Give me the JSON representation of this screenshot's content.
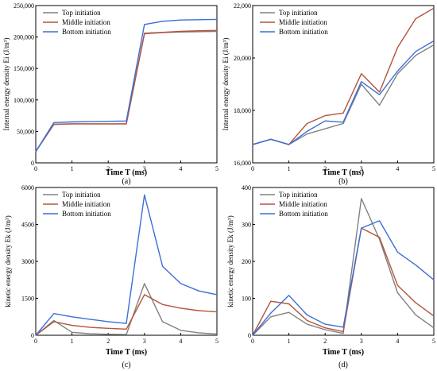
{
  "colors": {
    "top": "#808080",
    "middle": "#b5533c",
    "bottom": "#3a6fd8"
  },
  "chart_data": [
    {
      "type": "line",
      "panel_label": "(a)",
      "xlabel": "Time T (ms)",
      "ylabel": "Internal energy density Ei (J/m³)",
      "xlim": [
        0,
        5
      ],
      "ylim": [
        0,
        250000
      ],
      "xticks": [
        "0",
        "1",
        "2",
        "3",
        "4",
        "5"
      ],
      "yticks": [
        "0",
        "50,000",
        "100,000",
        "150,000",
        "200,000",
        "250,000"
      ],
      "legend_position": "top-left",
      "x": [
        0,
        0.5,
        1,
        1.5,
        2,
        2.5,
        3,
        3.5,
        4,
        4.5,
        5
      ],
      "series": [
        {
          "name": "Top initiation",
          "color_key": "top",
          "values": [
            18000,
            61000,
            62000,
            62000,
            62000,
            62000,
            205000,
            207000,
            208000,
            208500,
            209000
          ]
        },
        {
          "name": "Middle initiation",
          "color_key": "middle",
          "values": [
            18000,
            61500,
            62000,
            62000,
            62000,
            62000,
            206000,
            207500,
            209000,
            210000,
            210500
          ]
        },
        {
          "name": "Bottom initiation",
          "color_key": "bottom",
          "values": [
            18000,
            64000,
            65000,
            65500,
            66000,
            66500,
            220000,
            225000,
            227000,
            227500,
            228000
          ]
        }
      ]
    },
    {
      "type": "line",
      "panel_label": "(b)",
      "xlabel": "Time T (ms)",
      "ylabel": "Internal energy density Ei (J/m³)",
      "xlim": [
        0,
        5
      ],
      "ylim": [
        16000,
        22000
      ],
      "xticks": [
        "0",
        "1",
        "2",
        "3",
        "4",
        "5"
      ],
      "yticks": [
        "16,000",
        "18,000",
        "20,000",
        "22,000"
      ],
      "legend_position": "top-left",
      "x": [
        0,
        0.5,
        1,
        1.5,
        2,
        2.5,
        3,
        3.5,
        4,
        4.5,
        5
      ],
      "series": [
        {
          "name": "Top initiation",
          "color_key": "top",
          "values": [
            16700,
            16900,
            16700,
            17100,
            17300,
            17500,
            19000,
            18200,
            19400,
            20100,
            20500
          ]
        },
        {
          "name": "Middle initiation",
          "color_key": "middle",
          "values": [
            16700,
            16900,
            16700,
            17500,
            17800,
            17900,
            19400,
            18700,
            20400,
            21500,
            21900
          ]
        },
        {
          "name": "Bottom initiation",
          "color_key": "bottom",
          "values": [
            16700,
            16900,
            16700,
            17200,
            17600,
            17550,
            19100,
            18600,
            19500,
            20250,
            20650
          ]
        }
      ]
    },
    {
      "type": "line",
      "panel_label": "(c)",
      "xlabel": "Time T (ms)",
      "ylabel": "kinetic energy density Ek (J/m³)",
      "xlim": [
        0,
        5
      ],
      "ylim": [
        0,
        6000
      ],
      "xticks": [
        "0",
        "1",
        "2",
        "3",
        "4",
        "5"
      ],
      "yticks": [
        "0",
        "1500",
        "3000",
        "4500",
        "6000"
      ],
      "legend_position": "top-left",
      "x": [
        0,
        0.5,
        1,
        1.5,
        2,
        2.5,
        3,
        3.5,
        4,
        4.5,
        5
      ],
      "series": [
        {
          "name": "Top initiation",
          "color_key": "top",
          "values": [
            0,
            600,
            120,
            60,
            40,
            30,
            2100,
            550,
            200,
            100,
            50
          ]
        },
        {
          "name": "Middle initiation",
          "color_key": "middle",
          "values": [
            0,
            550,
            400,
            320,
            280,
            250,
            1650,
            1250,
            1100,
            1000,
            950
          ]
        },
        {
          "name": "Bottom initiation",
          "color_key": "bottom",
          "values": [
            0,
            880,
            750,
            650,
            550,
            480,
            5700,
            2800,
            2100,
            1800,
            1650
          ]
        }
      ]
    },
    {
      "type": "line",
      "panel_label": "(d)",
      "xlabel": "Time T (ms)",
      "ylabel": "kinetic energy density Ek (J/m³)",
      "xlim": [
        0,
        5
      ],
      "ylim": [
        0,
        400
      ],
      "xticks": [
        "0",
        "1",
        "2",
        "3",
        "4",
        "5"
      ],
      "yticks": [
        "0",
        "100",
        "200",
        "300",
        "400"
      ],
      "legend_position": "top-left",
      "x": [
        0,
        0.5,
        1,
        1.5,
        2,
        2.5,
        3,
        3.5,
        4,
        4.5,
        5
      ],
      "series": [
        {
          "name": "Top initiation",
          "color_key": "top",
          "values": [
            0,
            50,
            62,
            30,
            15,
            5,
            370,
            260,
            115,
            55,
            20
          ]
        },
        {
          "name": "Middle initiation",
          "color_key": "middle",
          "values": [
            0,
            92,
            85,
            40,
            20,
            10,
            290,
            265,
            135,
            88,
            52
          ]
        },
        {
          "name": "Bottom initiation",
          "color_key": "bottom",
          "values": [
            0,
            60,
            108,
            55,
            30,
            22,
            290,
            310,
            225,
            190,
            150
          ]
        }
      ]
    }
  ]
}
